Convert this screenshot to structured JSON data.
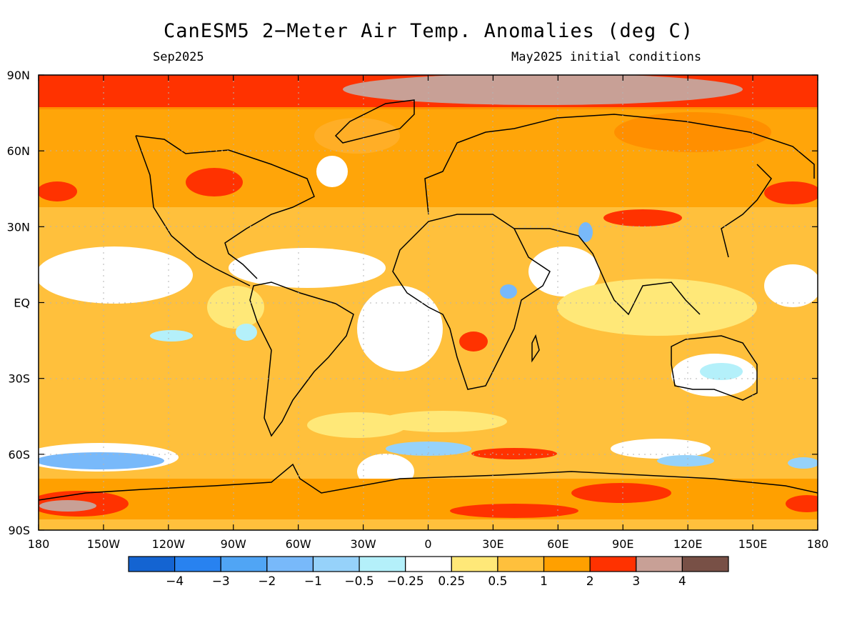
{
  "title": "CanESM5 2−Meter Air Temp. Anomalies (deg C)",
  "subtitle_left": "Sep2025",
  "subtitle_right": "May2025 initial conditions",
  "x_ticks": [
    "180",
    "150W",
    "120W",
    "90W",
    "60W",
    "30W",
    "0",
    "30E",
    "60E",
    "90E",
    "120E",
    "150E",
    "180"
  ],
  "y_ticks": [
    "90N",
    "60N",
    "30N",
    "EQ",
    "30S",
    "60S",
    "90S"
  ],
  "colorbar": {
    "colors": [
      "#1464d2",
      "#2882f0",
      "#50a5f5",
      "#78b9fa",
      "#96d2fa",
      "#b4f0fa",
      "#ffffff",
      "#ffe878",
      "#ffc03c",
      "#ffa000",
      "#ff3200",
      "#c8a096",
      "#785046"
    ],
    "labels": [
      "−4",
      "−3",
      "−2",
      "−1",
      "−0.5",
      "−0.25",
      "0.25",
      "0.5",
      "1",
      "2",
      "3",
      "4"
    ]
  },
  "colors": {
    "land_outline": "#000000",
    "grid": "#b4b4b4"
  }
}
